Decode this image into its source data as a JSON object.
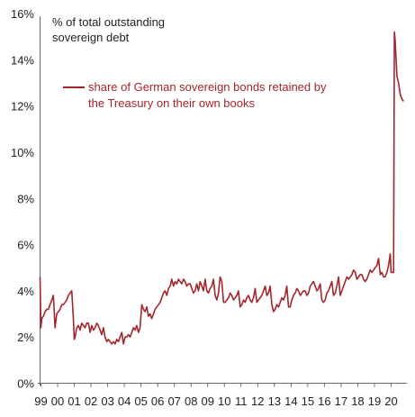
{
  "chart_data": {
    "type": "line",
    "title": "",
    "ylabel_lines": [
      "% of total outstanding",
      "sovereign debt"
    ],
    "xlabel": "",
    "ylim": [
      0,
      16
    ],
    "yticks": [
      "0%",
      "2%",
      "4%",
      "6%",
      "8%",
      "10%",
      "12%",
      "14%",
      "16%"
    ],
    "xlim": [
      1999.0,
      2021.0
    ],
    "xticks": [
      {
        "label": "99",
        "x": 1999.0
      },
      {
        "label": "00",
        "x": 2000.0
      },
      {
        "label": "01",
        "x": 2001.0
      },
      {
        "label": "02",
        "x": 2002.0
      },
      {
        "label": "03",
        "x": 2003.0
      },
      {
        "label": "04",
        "x": 2004.0
      },
      {
        "label": "05",
        "x": 2005.0
      },
      {
        "label": "06",
        "x": 2006.0
      },
      {
        "label": "07",
        "x": 2007.0
      },
      {
        "label": "08",
        "x": 2008.0
      },
      {
        "label": "09",
        "x": 2009.0
      },
      {
        "label": "10",
        "x": 2010.0
      },
      {
        "label": "11",
        "x": 2011.0
      },
      {
        "label": "12",
        "x": 2012.0
      },
      {
        "label": "13",
        "x": 2013.0
      },
      {
        "label": "14",
        "x": 2014.0
      },
      {
        "label": "15",
        "x": 2015.0
      },
      {
        "label": "16",
        "x": 2016.0
      },
      {
        "label": "17",
        "x": 2017.0
      },
      {
        "label": "18",
        "x": 2018.0
      },
      {
        "label": "19",
        "x": 2019.0
      },
      {
        "label": "20",
        "x": 2020.0
      }
    ],
    "legend": {
      "position": "top-left",
      "label_lines": [
        "share of German sovereign bonds retained by",
        "the Treasury on their own books"
      ]
    },
    "grid": false,
    "color": "#a3262c",
    "series": [
      {
        "x": [
          1999.0,
          1999.05,
          1999.1,
          1999.2,
          1999.3,
          1999.4,
          1999.5,
          1999.6,
          1999.7,
          1999.8,
          1999.9,
          2000.0,
          2000.1,
          2000.2,
          2000.3,
          2000.4,
          2000.5,
          2000.6,
          2000.7,
          2000.8,
          2000.9,
          2001.0,
          2001.05,
          2001.1,
          2001.2,
          2001.3,
          2001.4,
          2001.5,
          2001.6,
          2001.7,
          2001.8,
          2001.9,
          2002.0,
          2002.1,
          2002.2,
          2002.3,
          2002.4,
          2002.5,
          2002.6,
          2002.7,
          2002.8,
          2002.9,
          2003.0,
          2003.1,
          2003.2,
          2003.3,
          2003.4,
          2003.5,
          2003.6,
          2003.7,
          2003.8,
          2003.9,
          2004.0,
          2004.1,
          2004.2,
          2004.3,
          2004.4,
          2004.5,
          2004.6,
          2004.7,
          2004.8,
          2004.9,
          2005.0,
          2005.1,
          2005.2,
          2005.3,
          2005.4,
          2005.5,
          2005.6,
          2005.7,
          2005.8,
          2005.9,
          2006.0,
          2006.1,
          2006.2,
          2006.3,
          2006.4,
          2006.5,
          2006.6,
          2006.7,
          2006.8,
          2006.9,
          2007.0,
          2007.1,
          2007.2,
          2007.3,
          2007.4,
          2007.5,
          2007.6,
          2007.7,
          2007.8,
          2007.9,
          2008.0,
          2008.1,
          2008.2,
          2008.3,
          2008.4,
          2008.5,
          2008.6,
          2008.7,
          2008.8,
          2008.9,
          2009.0,
          2009.1,
          2009.2,
          2009.3,
          2009.4,
          2009.5,
          2009.6,
          2009.7,
          2009.8,
          2009.9,
          2010.0,
          2010.1,
          2010.2,
          2010.3,
          2010.4,
          2010.5,
          2010.6,
          2010.7,
          2010.8,
          2010.9,
          2011.0,
          2011.1,
          2011.2,
          2011.3,
          2011.4,
          2011.5,
          2011.6,
          2011.7,
          2011.8,
          2011.9,
          2012.0,
          2012.1,
          2012.2,
          2012.3,
          2012.4,
          2012.5,
          2012.6,
          2012.7,
          2012.8,
          2012.9,
          2013.0,
          2013.1,
          2013.2,
          2013.3,
          2013.4,
          2013.5,
          2013.6,
          2013.7,
          2013.8,
          2013.9,
          2014.0,
          2014.1,
          2014.2,
          2014.3,
          2014.4,
          2014.5,
          2014.6,
          2014.7,
          2014.8,
          2014.9,
          2015.0,
          2015.1,
          2015.2,
          2015.3,
          2015.4,
          2015.5,
          2015.6,
          2015.7,
          2015.8,
          2015.9,
          2016.0,
          2016.1,
          2016.2,
          2016.3,
          2016.4,
          2016.5,
          2016.6,
          2016.7,
          2016.8,
          2016.9,
          2017.0,
          2017.1,
          2017.2,
          2017.3,
          2017.4,
          2017.5,
          2017.6,
          2017.7,
          2017.8,
          2017.9,
          2018.0,
          2018.1,
          2018.2,
          2018.3,
          2018.4,
          2018.5,
          2018.6,
          2018.7,
          2018.8,
          2018.9,
          2019.0,
          2019.1,
          2019.2,
          2019.3,
          2019.4,
          2019.5,
          2019.6,
          2019.7,
          2019.8,
          2019.9,
          2020.0,
          2020.05,
          2020.1,
          2020.2,
          2020.25,
          2020.3,
          2020.4,
          2020.5,
          2020.6,
          2020.7,
          2020.8
        ],
        "y": [
          4.6,
          2.4,
          2.8,
          2.9,
          3.1,
          3.2,
          3.2,
          3.4,
          3.6,
          3.8,
          2.4,
          3.0,
          3.1,
          3.2,
          3.4,
          3.4,
          3.5,
          3.6,
          3.8,
          3.9,
          4.0,
          2.8,
          1.9,
          2.0,
          2.4,
          2.5,
          2.3,
          2.6,
          2.5,
          2.4,
          2.6,
          2.6,
          2.2,
          2.5,
          2.3,
          2.4,
          2.6,
          2.5,
          2.3,
          2.1,
          2.4,
          2.0,
          1.8,
          1.9,
          1.8,
          1.7,
          1.8,
          1.7,
          1.9,
          1.8,
          2.0,
          2.2,
          1.7,
          2.0,
          2.0,
          2.1,
          2.0,
          2.2,
          2.4,
          2.3,
          2.5,
          2.2,
          2.4,
          3.4,
          3.2,
          3.1,
          3.3,
          2.9,
          3.0,
          2.8,
          3.0,
          3.2,
          3.3,
          3.4,
          3.5,
          3.7,
          3.9,
          4.0,
          3.8,
          4.1,
          4.2,
          4.5,
          4.2,
          4.4,
          4.3,
          4.5,
          4.4,
          4.3,
          4.5,
          4.4,
          4.2,
          4.3,
          4.3,
          4.1,
          3.9,
          4.0,
          4.3,
          4.0,
          4.4,
          4.2,
          4.0,
          4.5,
          4.0,
          3.9,
          4.1,
          4.2,
          4.5,
          3.8,
          3.6,
          3.9,
          4.6,
          4.4,
          3.5,
          3.5,
          3.6,
          3.7,
          3.9,
          3.8,
          3.6,
          3.7,
          3.8,
          4.0,
          3.3,
          3.4,
          3.6,
          3.5,
          3.7,
          3.8,
          3.6,
          3.5,
          3.7,
          4.1,
          3.5,
          3.6,
          3.7,
          3.8,
          4.0,
          4.2,
          3.8,
          3.9,
          4.2,
          3.4,
          3.1,
          3.2,
          3.4,
          3.3,
          3.5,
          3.7,
          3.6,
          3.8,
          4.2,
          3.3,
          3.3,
          3.6,
          3.8,
          3.9,
          4.1,
          4.0,
          3.8,
          3.9,
          4.0,
          4.0,
          3.8,
          3.9,
          4.2,
          4.3,
          4.4,
          4.2,
          4.0,
          4.1,
          4.3,
          3.6,
          3.5,
          3.6,
          3.9,
          4.0,
          4.2,
          4.4,
          3.8,
          3.9,
          4.2,
          4.6,
          3.8,
          4.0,
          4.2,
          4.4,
          4.6,
          4.5,
          4.6,
          4.7,
          4.9,
          4.8,
          4.5,
          4.6,
          4.7,
          4.7,
          4.5,
          4.4,
          4.5,
          4.7,
          4.9,
          4.8,
          4.9,
          5.0,
          5.1,
          5.4,
          4.7,
          4.8,
          4.6,
          4.6,
          4.8,
          5.1,
          5.6,
          4.8,
          4.8,
          4.8,
          15.2,
          14.8,
          13.3,
          13.0,
          12.5,
          12.3,
          12.2
        ]
      }
    ]
  }
}
